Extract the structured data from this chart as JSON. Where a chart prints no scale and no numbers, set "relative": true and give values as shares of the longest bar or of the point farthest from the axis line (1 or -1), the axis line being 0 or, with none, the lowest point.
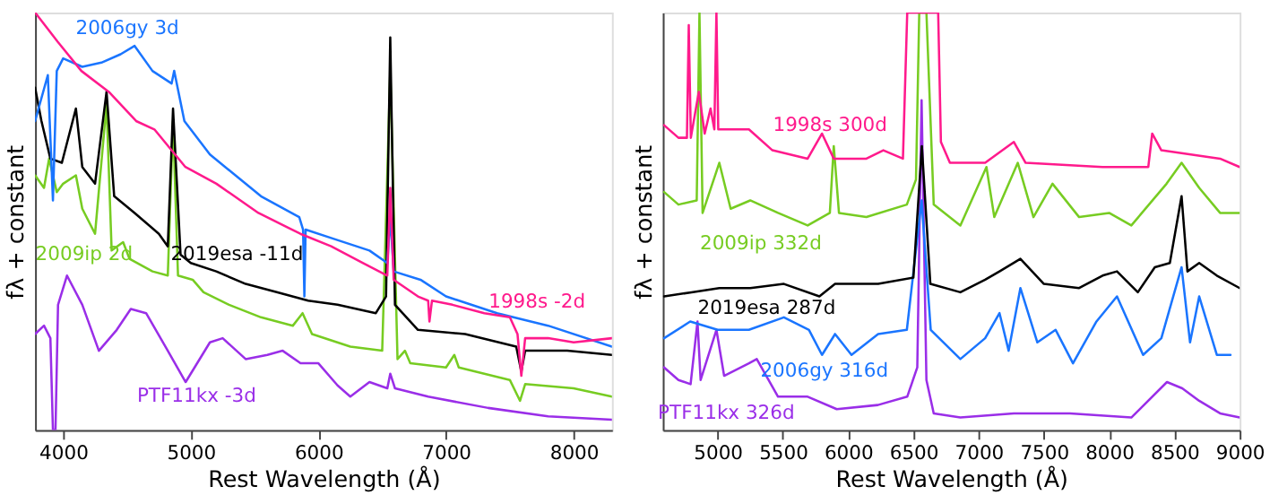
{
  "chart_data": [
    {
      "type": "line",
      "xlabel": "Rest Wavelength (Å)",
      "ylabel": "fλ + constant",
      "relative": true,
      "tick_labels": "x",
      "grid": false,
      "xlim": [
        3780,
        8300
      ],
      "xticks": [
        4000,
        5000,
        6000,
        7000,
        8000
      ],
      "series": [
        {
          "name": "1998s -2d",
          "color": "#ff1a8c",
          "x": [
            3780,
            3957,
            4143,
            4358,
            4572,
            4715,
            4958,
            5201,
            5530,
            5859,
            6100,
            6350,
            6540,
            6563,
            6590,
            6780,
            6860,
            6870,
            6890,
            7050,
            7300,
            7500,
            7560,
            7590,
            7620,
            7800,
            8000,
            8300
          ],
          "values": [
            1.0,
            0.93,
            0.86,
            0.81,
            0.74,
            0.72,
            0.63,
            0.59,
            0.52,
            0.47,
            0.44,
            0.4,
            0.37,
            0.58,
            0.36,
            0.32,
            0.31,
            0.26,
            0.31,
            0.3,
            0.28,
            0.27,
            0.23,
            0.13,
            0.22,
            0.22,
            0.21,
            0.22
          ]
        },
        {
          "name": "2006gy 3d",
          "color": "#1a75ff",
          "x": [
            3780,
            3880,
            3920,
            3950,
            4000,
            4150,
            4300,
            4450,
            4560,
            4700,
            4850,
            4870,
            4950,
            5150,
            5350,
            5550,
            5850,
            5880,
            5890,
            5900,
            6100,
            6400,
            6540,
            6563,
            6590,
            6800,
            7000,
            7400,
            7800,
            8300
          ],
          "values": [
            0.74,
            0.85,
            0.55,
            0.86,
            0.89,
            0.87,
            0.88,
            0.9,
            0.92,
            0.86,
            0.83,
            0.86,
            0.74,
            0.66,
            0.61,
            0.56,
            0.51,
            0.48,
            0.32,
            0.48,
            0.46,
            0.43,
            0.4,
            0.51,
            0.38,
            0.36,
            0.32,
            0.28,
            0.25,
            0.2
          ]
        },
        {
          "name": "2019esa -11d",
          "color": "#000000",
          "x": [
            3780,
            3830,
            3900,
            3990,
            4100,
            4150,
            4250,
            4340,
            4400,
            4560,
            4750,
            4820,
            4861,
            4920,
            5000,
            5200,
            5430,
            5680,
            5920,
            6150,
            6450,
            6530,
            6563,
            6600,
            6780,
            7150,
            7550,
            7590,
            7620,
            7950,
            8300
          ],
          "values": [
            0.82,
            0.74,
            0.65,
            0.64,
            0.77,
            0.63,
            0.59,
            0.81,
            0.56,
            0.52,
            0.47,
            0.44,
            0.77,
            0.42,
            0.4,
            0.38,
            0.35,
            0.33,
            0.31,
            0.3,
            0.28,
            0.32,
            0.94,
            0.3,
            0.24,
            0.23,
            0.2,
            0.14,
            0.19,
            0.19,
            0.18
          ]
        },
        {
          "name": "2009ip 2d",
          "color": "#77cc22",
          "x": [
            3780,
            3850,
            3890,
            3950,
            4000,
            4100,
            4150,
            4250,
            4340,
            4380,
            4470,
            4520,
            4700,
            4820,
            4861,
            4900,
            5015,
            5100,
            5300,
            5550,
            5800,
            5876,
            5950,
            6250,
            6500,
            6563,
            6620,
            6678,
            6720,
            7000,
            7065,
            7100,
            7500,
            7580,
            7620,
            8000,
            8300
          ],
          "values": [
            0.61,
            0.58,
            0.65,
            0.57,
            0.59,
            0.61,
            0.53,
            0.47,
            0.78,
            0.43,
            0.45,
            0.41,
            0.38,
            0.37,
            0.74,
            0.37,
            0.36,
            0.33,
            0.3,
            0.27,
            0.25,
            0.28,
            0.23,
            0.2,
            0.19,
            0.86,
            0.17,
            0.19,
            0.16,
            0.15,
            0.18,
            0.15,
            0.12,
            0.07,
            0.11,
            0.1,
            0.08
          ]
        },
        {
          "name": "PTF11kx -3d",
          "color": "#9a2ee8",
          "x": [
            3780,
            3850,
            3900,
            3920,
            3940,
            3960,
            4030,
            4150,
            4280,
            4420,
            4530,
            4650,
            4820,
            4960,
            5150,
            5250,
            5430,
            5600,
            5720,
            5860,
            6000,
            6150,
            6250,
            6400,
            6540,
            6563,
            6600,
            6860,
            7330,
            7800,
            8300
          ],
          "values": [
            0.23,
            0.25,
            0.22,
            0.0,
            0.0,
            0.3,
            0.37,
            0.3,
            0.19,
            0.24,
            0.29,
            0.28,
            0.19,
            0.115,
            0.21,
            0.22,
            0.17,
            0.18,
            0.19,
            0.16,
            0.16,
            0.107,
            0.08,
            0.115,
            0.1,
            0.135,
            0.1,
            0.08,
            0.053,
            0.033,
            0.025
          ]
        }
      ]
    },
    {
      "type": "line",
      "xlabel": "Rest Wavelength (Å)",
      "ylabel": "fλ + constant",
      "relative": true,
      "tick_labels": "x",
      "grid": false,
      "xlim": [
        4580,
        9000
      ],
      "xticks": [
        5000,
        5500,
        6000,
        6500,
        7000,
        7500,
        8000,
        8500,
        9000
      ],
      "series": [
        {
          "name": "1998s 300d",
          "color": "#ff1a8c",
          "x": [
            4590,
            4700,
            4765,
            4779,
            4795,
            4856,
            4901,
            4946,
            4975,
            4991,
            5005,
            5240,
            5420,
            5690,
            5800,
            5890,
            6140,
            6270,
            6420,
            6453,
            6690,
            6711,
            6780,
            7050,
            7270,
            7360,
            7950,
            8300,
            8330,
            8400,
            8850,
            9000
          ],
          "values": [
            0.73,
            0.7,
            0.7,
            0.97,
            0.7,
            0.81,
            0.71,
            0.77,
            0.72,
            1.0,
            0.72,
            0.72,
            0.67,
            0.65,
            0.71,
            0.65,
            0.65,
            0.67,
            0.65,
            1.0,
            1.0,
            0.69,
            0.64,
            0.64,
            0.69,
            0.64,
            0.63,
            0.63,
            0.71,
            0.67,
            0.65,
            0.63
          ]
        },
        {
          "name": "2009ip 332d",
          "color": "#77cc22",
          "x": [
            4590,
            4700,
            4840,
            4861,
            4885,
            5013,
            5100,
            5250,
            5463,
            5690,
            5860,
            5890,
            5930,
            6140,
            6450,
            6520,
            6545,
            6600,
            6656,
            6860,
            7060,
            7120,
            7300,
            7420,
            7566,
            7770,
            8000,
            8170,
            8440,
            8555,
            8690,
            8850,
            9000
          ],
          "values": [
            0.57,
            0.54,
            0.55,
            1.0,
            0.52,
            0.64,
            0.53,
            0.55,
            0.52,
            0.49,
            0.52,
            0.68,
            0.52,
            0.51,
            0.54,
            0.6,
            1.0,
            1.0,
            0.54,
            0.49,
            0.63,
            0.51,
            0.64,
            0.51,
            0.59,
            0.51,
            0.52,
            0.49,
            0.59,
            0.64,
            0.58,
            0.52,
            0.52
          ]
        },
        {
          "name": "2019esa 287d",
          "color": "#000000",
          "x": [
            4590,
            4800,
            5013,
            5250,
            5508,
            5780,
            5900,
            6230,
            6500,
            6565,
            6630,
            6860,
            7050,
            7160,
            7320,
            7500,
            7770,
            7950,
            8060,
            8220,
            8350,
            8465,
            8555,
            8600,
            8690,
            8825,
            9000
          ],
          "values": [
            0.32,
            0.33,
            0.34,
            0.34,
            0.35,
            0.32,
            0.35,
            0.35,
            0.365,
            0.68,
            0.35,
            0.33,
            0.36,
            0.38,
            0.41,
            0.35,
            0.34,
            0.37,
            0.38,
            0.33,
            0.39,
            0.4,
            0.56,
            0.38,
            0.4,
            0.37,
            0.34
          ]
        },
        {
          "name": "2006gy 316d",
          "color": "#1a75ff",
          "x": [
            4590,
            4790,
            5000,
            5240,
            5508,
            5700,
            5800,
            5900,
            6026,
            6230,
            6450,
            6563,
            6633,
            6860,
            7050,
            7160,
            7230,
            7320,
            7450,
            7590,
            7723,
            7903,
            8060,
            8260,
            8400,
            8555,
            8620,
            8690,
            8825,
            8930
          ],
          "values": [
            0.22,
            0.26,
            0.24,
            0.24,
            0.27,
            0.24,
            0.18,
            0.23,
            0.18,
            0.23,
            0.24,
            0.55,
            0.24,
            0.17,
            0.22,
            0.28,
            0.19,
            0.34,
            0.21,
            0.24,
            0.16,
            0.26,
            0.32,
            0.18,
            0.22,
            0.39,
            0.21,
            0.32,
            0.18,
            0.18
          ]
        },
        {
          "name": "PTF11kx 326d",
          "color": "#9a2ee8",
          "x": [
            4590,
            4700,
            4793,
            4846,
            4870,
            4991,
            5050,
            5240,
            5300,
            5463,
            5690,
            5913,
            6228,
            6453,
            6530,
            6563,
            6600,
            6656,
            6860,
            7270,
            7700,
            8170,
            8443,
            8560,
            8690,
            8850,
            9000
          ],
          "values": [
            0.15,
            0.12,
            0.11,
            0.26,
            0.12,
            0.24,
            0.13,
            0.16,
            0.17,
            0.08,
            0.08,
            0.05,
            0.06,
            0.08,
            0.15,
            0.79,
            0.12,
            0.04,
            0.03,
            0.04,
            0.04,
            0.03,
            0.115,
            0.1,
            0.07,
            0.04,
            0.03
          ]
        }
      ]
    }
  ]
}
